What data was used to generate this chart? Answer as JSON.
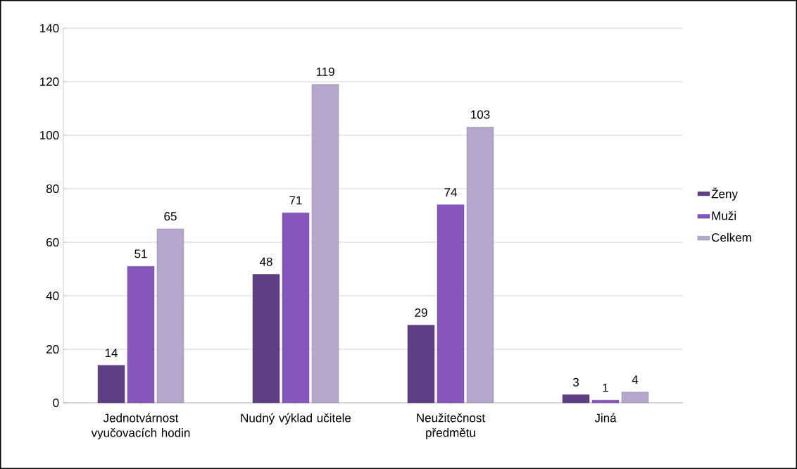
{
  "chart_data": {
    "type": "bar",
    "categories": [
      "Jednotvárnost vyučovacích hodin",
      "Nudný výklad učitele",
      "Neužitečnost předmětu",
      "Jiná"
    ],
    "series": [
      {
        "name": "Ženy",
        "color": "#5e3f86",
        "values": [
          14,
          48,
          29,
          3
        ]
      },
      {
        "name": "Muži",
        "color": "#8756bd",
        "values": [
          51,
          71,
          74,
          1
        ]
      },
      {
        "name": "Celkem",
        "color": "#b5a6cb",
        "values": [
          65,
          119,
          103,
          4
        ]
      }
    ],
    "ylim": [
      0,
      140
    ],
    "yticks": [
      0,
      20,
      40,
      60,
      80,
      100,
      120,
      140
    ],
    "grid": "y",
    "legend": "right",
    "data_labels": true
  }
}
